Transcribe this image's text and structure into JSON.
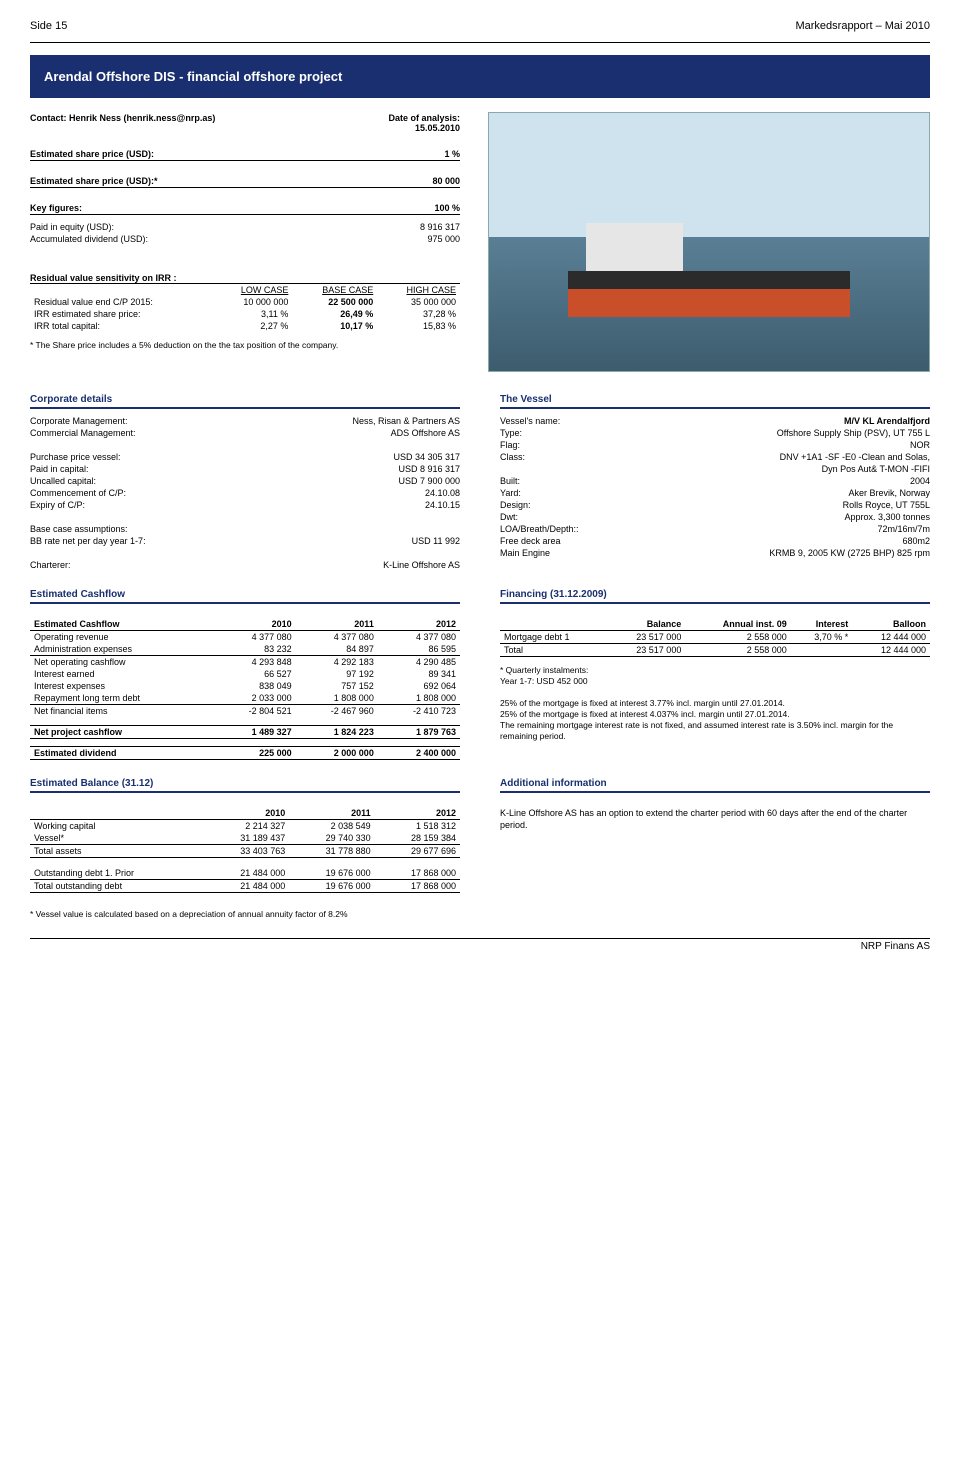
{
  "header": {
    "left": "Side 15",
    "right": "Markedsrapport – Mai 2010"
  },
  "title": "Arendal Offshore DIS - financial offshore project",
  "contact": {
    "label": "Contact: Henrik Ness (henrik.ness@nrp.as)",
    "date_label": "Date of analysis:",
    "date": "15.05.2010"
  },
  "est_price": {
    "l1k": "Estimated share price (USD):",
    "l1v": "1 %",
    "l2k": "Estimated share price (USD):*",
    "l2v": "80 000"
  },
  "key_figures": {
    "head": "Key figures:",
    "headv": "100 %",
    "r1k": "Paid in equity (USD):",
    "r1v": "8 916 317",
    "r2k": "Accumulated dividend (USD):",
    "r2v": "975 000"
  },
  "residual": {
    "head": "Residual value sensitivity on IRR :",
    "hdr": [
      "",
      "LOW CASE",
      "BASE CASE",
      "HIGH CASE"
    ],
    "rows": [
      [
        "Residual value end C/P 2015:",
        "10 000 000",
        "22 500 000",
        "35 000 000"
      ],
      [
        "IRR estimated share price:",
        "3,11 %",
        "26,49 %",
        "37,28 %"
      ],
      [
        "IRR total capital:",
        "2,27 %",
        "10,17 %",
        "15,83 %"
      ]
    ],
    "note": "* The Share price includes a 5% deduction on the the tax position of the company."
  },
  "corp": {
    "head": "Corporate details",
    "rows": [
      [
        "Corporate Management:",
        "Ness, Risan & Partners AS"
      ],
      [
        "Commercial Management:",
        "ADS Offshore AS"
      ],
      [
        "",
        ""
      ],
      [
        "Purchase price vessel:",
        "USD 34 305 317"
      ],
      [
        "Paid in capital:",
        "USD 8 916 317"
      ],
      [
        "Uncalled capital:",
        "USD 7 900 000"
      ],
      [
        "Commencement of C/P:",
        "24.10.08"
      ],
      [
        "Expiry of C/P:",
        "24.10.15"
      ],
      [
        "",
        ""
      ],
      [
        "Base case assumptions:",
        ""
      ],
      [
        "BB rate net per day year 1-7:",
        "USD 11 992"
      ],
      [
        "",
        ""
      ],
      [
        "Charterer:",
        "K-Line Offshore AS"
      ]
    ]
  },
  "vessel": {
    "head": "The Vessel",
    "rows": [
      [
        "Vessel's name:",
        "M/V KL Arendalfjord"
      ],
      [
        "Type:",
        "Offshore Supply Ship (PSV), UT 755 L"
      ],
      [
        "Flag:",
        "NOR"
      ],
      [
        "Class:",
        "DNV +1A1 -SF -E0 -Clean and Solas,"
      ],
      [
        "",
        "Dyn Pos Aut& T-MON -FIFI"
      ],
      [
        "Built:",
        "2004"
      ],
      [
        "Yard:",
        "Aker Brevik, Norway"
      ],
      [
        "Design:",
        "Rolls Royce, UT 755L"
      ],
      [
        "Dwt:",
        "Approx. 3,300 tonnes"
      ],
      [
        "LOA/Breath/Depth::",
        "72m/16m/7m"
      ],
      [
        "Free deck area",
        "680m2"
      ],
      [
        "Main Engine",
        "KRMB 9, 2005 KW (2725 BHP) 825 rpm"
      ]
    ]
  },
  "cashflow": {
    "head": "Estimated Cashflow",
    "hdr": [
      "Estimated Cashflow",
      "2010",
      "2011",
      "2012"
    ],
    "rows": [
      [
        "Operating revenue",
        "4 377 080",
        "4 377 080",
        "4 377 080"
      ],
      [
        "Administration expenses",
        "83 232",
        "84 897",
        "86 595"
      ],
      [
        "Net operating cashflow",
        "4 293 848",
        "4 292 183",
        "4 290 485"
      ],
      [
        "Interest earned",
        "66 527",
        "97 192",
        "89 341"
      ],
      [
        "Interest expenses",
        "838 049",
        "757 152",
        "692 064"
      ],
      [
        "Repayment long term debt",
        "2 033 000",
        "1 808 000",
        "1 808 000"
      ],
      [
        "Net financial items",
        "-2 804 521",
        "-2 467 960",
        "-2 410 723"
      ]
    ],
    "net_row": [
      "Net project cashflow",
      "1 489 327",
      "1 824 223",
      "1 879 763"
    ],
    "div_row": [
      "Estimated dividend",
      "225 000",
      "2 000 000",
      "2 400 000"
    ]
  },
  "financing": {
    "head": "Financing (31.12.2009)",
    "hdr": [
      "",
      "Balance",
      "Annual inst. 09",
      "Interest",
      "Balloon"
    ],
    "rows": [
      [
        "Mortgage debt 1",
        "23 517 000",
        "2 558 000",
        "3,70 % *",
        "12 444 000"
      ],
      [
        "Total",
        "23 517 000",
        "2 558 000",
        "",
        "12 444 000"
      ]
    ],
    "notes": [
      "* Quarterly instalments:",
      "Year 1-7: USD 452 000",
      "",
      "25% of the mortgage is fixed at interest 3.77% incl. margin until 27.01.2014.",
      "25% of the mortgage is fixed at interest 4.037% incl. margin until 27.01.2014.",
      "The remaining mortgage interest rate is not fixed, and assumed interest rate is 3.50% incl. margin for the remaining period."
    ]
  },
  "balance": {
    "head": "Estimated Balance (31.12)",
    "hdr": [
      "",
      "2010",
      "2011",
      "2012"
    ],
    "rows1": [
      [
        "Working capital",
        "2 214 327",
        "2 038 549",
        "1 518 312"
      ],
      [
        "Vessel*",
        "31 189 437",
        "29 740 330",
        "28 159 384"
      ],
      [
        "Total assets",
        "33 403 763",
        "31 778 880",
        "29 677 696"
      ]
    ],
    "rows2": [
      [
        "Outstanding debt 1. Prior",
        "21 484 000",
        "19 676 000",
        "17 868 000"
      ],
      [
        "Total outstanding debt",
        "21 484 000",
        "19 676 000",
        "17 868 000"
      ]
    ],
    "note": "* Vessel value is calculated based on a depreciation of annual annuity factor of 8.2%"
  },
  "additional": {
    "head": "Additional information",
    "text": "K-Line Offshore AS has an option to extend the charter period with 60 days after the end of the charter period."
  },
  "footer": "NRP Finans AS"
}
